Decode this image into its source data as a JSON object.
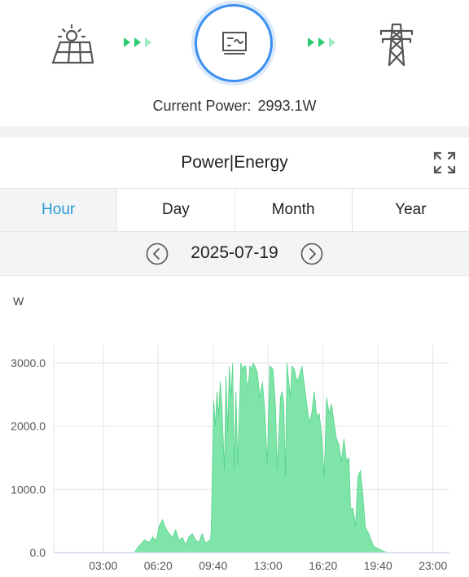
{
  "energy_flow": {
    "solar_icon": "solar-panel-icon",
    "inverter_icon": "inverter-icon",
    "grid_icon": "transmission-tower-icon",
    "arrow_color": "#2ecc71",
    "current_power_label": "Current Power:",
    "current_power_value": "2993.1W"
  },
  "panel": {
    "title": "Power|Energy",
    "expand_icon": "fullscreen-icon"
  },
  "tabs": [
    {
      "label": "Hour",
      "active": true
    },
    {
      "label": "Day",
      "active": false
    },
    {
      "label": "Month",
      "active": false
    },
    {
      "label": "Year",
      "active": false
    }
  ],
  "date_nav": {
    "date": "2025-07-19",
    "prev_icon": "chevron-left-icon",
    "next_icon": "chevron-right-icon"
  },
  "chart_unit": "W",
  "colors": {
    "accent": "#2a9bd4",
    "series_fill": "#7fe4a8",
    "series_stroke": "#54d48a",
    "ring": "#3b8fef"
  },
  "chart_data": {
    "type": "area",
    "title": "",
    "xlabel": "",
    "ylabel": "W",
    "xlim": [
      0,
      24
    ],
    "ylim": [
      0,
      3000
    ],
    "yticks": [
      "0.0",
      "1000.0",
      "2000.0",
      "3000.0"
    ],
    "xticks": [
      "03:00",
      "06:20",
      "09:40",
      "13:00",
      "16:20",
      "19:40",
      "23:00"
    ],
    "grid": true,
    "series": [
      {
        "x": [
          0,
          4.9,
          5.1,
          5.5,
          5.8,
          6.0,
          6.2,
          6.4,
          6.6,
          6.8,
          7.0,
          7.2,
          7.4,
          7.6,
          7.8,
          8.0,
          8.2,
          8.4,
          8.6,
          8.8,
          9.0,
          9.2,
          9.5,
          9.55,
          9.6,
          9.7,
          9.8,
          9.9,
          10.0,
          10.1,
          10.2,
          10.35,
          10.45,
          10.55,
          10.65,
          10.75,
          10.85,
          10.95,
          11.05,
          11.15,
          11.25,
          11.35,
          11.45,
          11.55,
          11.65,
          11.7,
          11.8,
          11.9,
          12.0,
          12.1,
          12.2,
          12.35,
          12.5,
          12.65,
          12.8,
          12.95,
          13.1,
          13.3,
          13.45,
          13.55,
          13.65,
          13.75,
          13.85,
          13.95,
          14.05,
          14.15,
          14.25,
          14.35,
          14.45,
          14.6,
          14.75,
          14.9,
          15.05,
          15.2,
          15.35,
          15.5,
          15.65,
          15.8,
          15.95,
          16.1,
          16.25,
          16.4,
          16.55,
          16.7,
          16.85,
          17.0,
          17.15,
          17.3,
          17.45,
          17.6,
          17.75,
          17.9,
          18.0,
          18.15,
          18.3,
          18.45,
          18.6,
          18.75,
          18.9,
          19.1,
          19.4,
          19.7,
          20.0,
          20.3,
          24
        ],
        "y": [
          0,
          0,
          80,
          200,
          160,
          250,
          180,
          420,
          520,
          380,
          300,
          240,
          360,
          190,
          240,
          120,
          250,
          300,
          200,
          160,
          300,
          150,
          200,
          350,
          1000,
          2400,
          2000,
          2550,
          2150,
          2700,
          2350,
          1300,
          2800,
          1900,
          2950,
          2450,
          3000,
          1300,
          2550,
          1400,
          2150,
          3000,
          2900,
          2950,
          2950,
          2700,
          2650,
          2950,
          2900,
          3000,
          2950,
          2850,
          2450,
          2700,
          2250,
          1400,
          2950,
          2900,
          2300,
          1300,
          1850,
          2450,
          2550,
          2350,
          1200,
          3000,
          2700,
          2450,
          2950,
          2900,
          2700,
          2800,
          2950,
          2650,
          2350,
          2050,
          2200,
          2550,
          2150,
          2200,
          1850,
          1200,
          2450,
          2200,
          2350,
          2050,
          1800,
          1700,
          1450,
          1800,
          1450,
          1500,
          700,
          700,
          420,
          1200,
          1300,
          900,
          400,
          300,
          100,
          60,
          20,
          0,
          0
        ]
      }
    ]
  }
}
